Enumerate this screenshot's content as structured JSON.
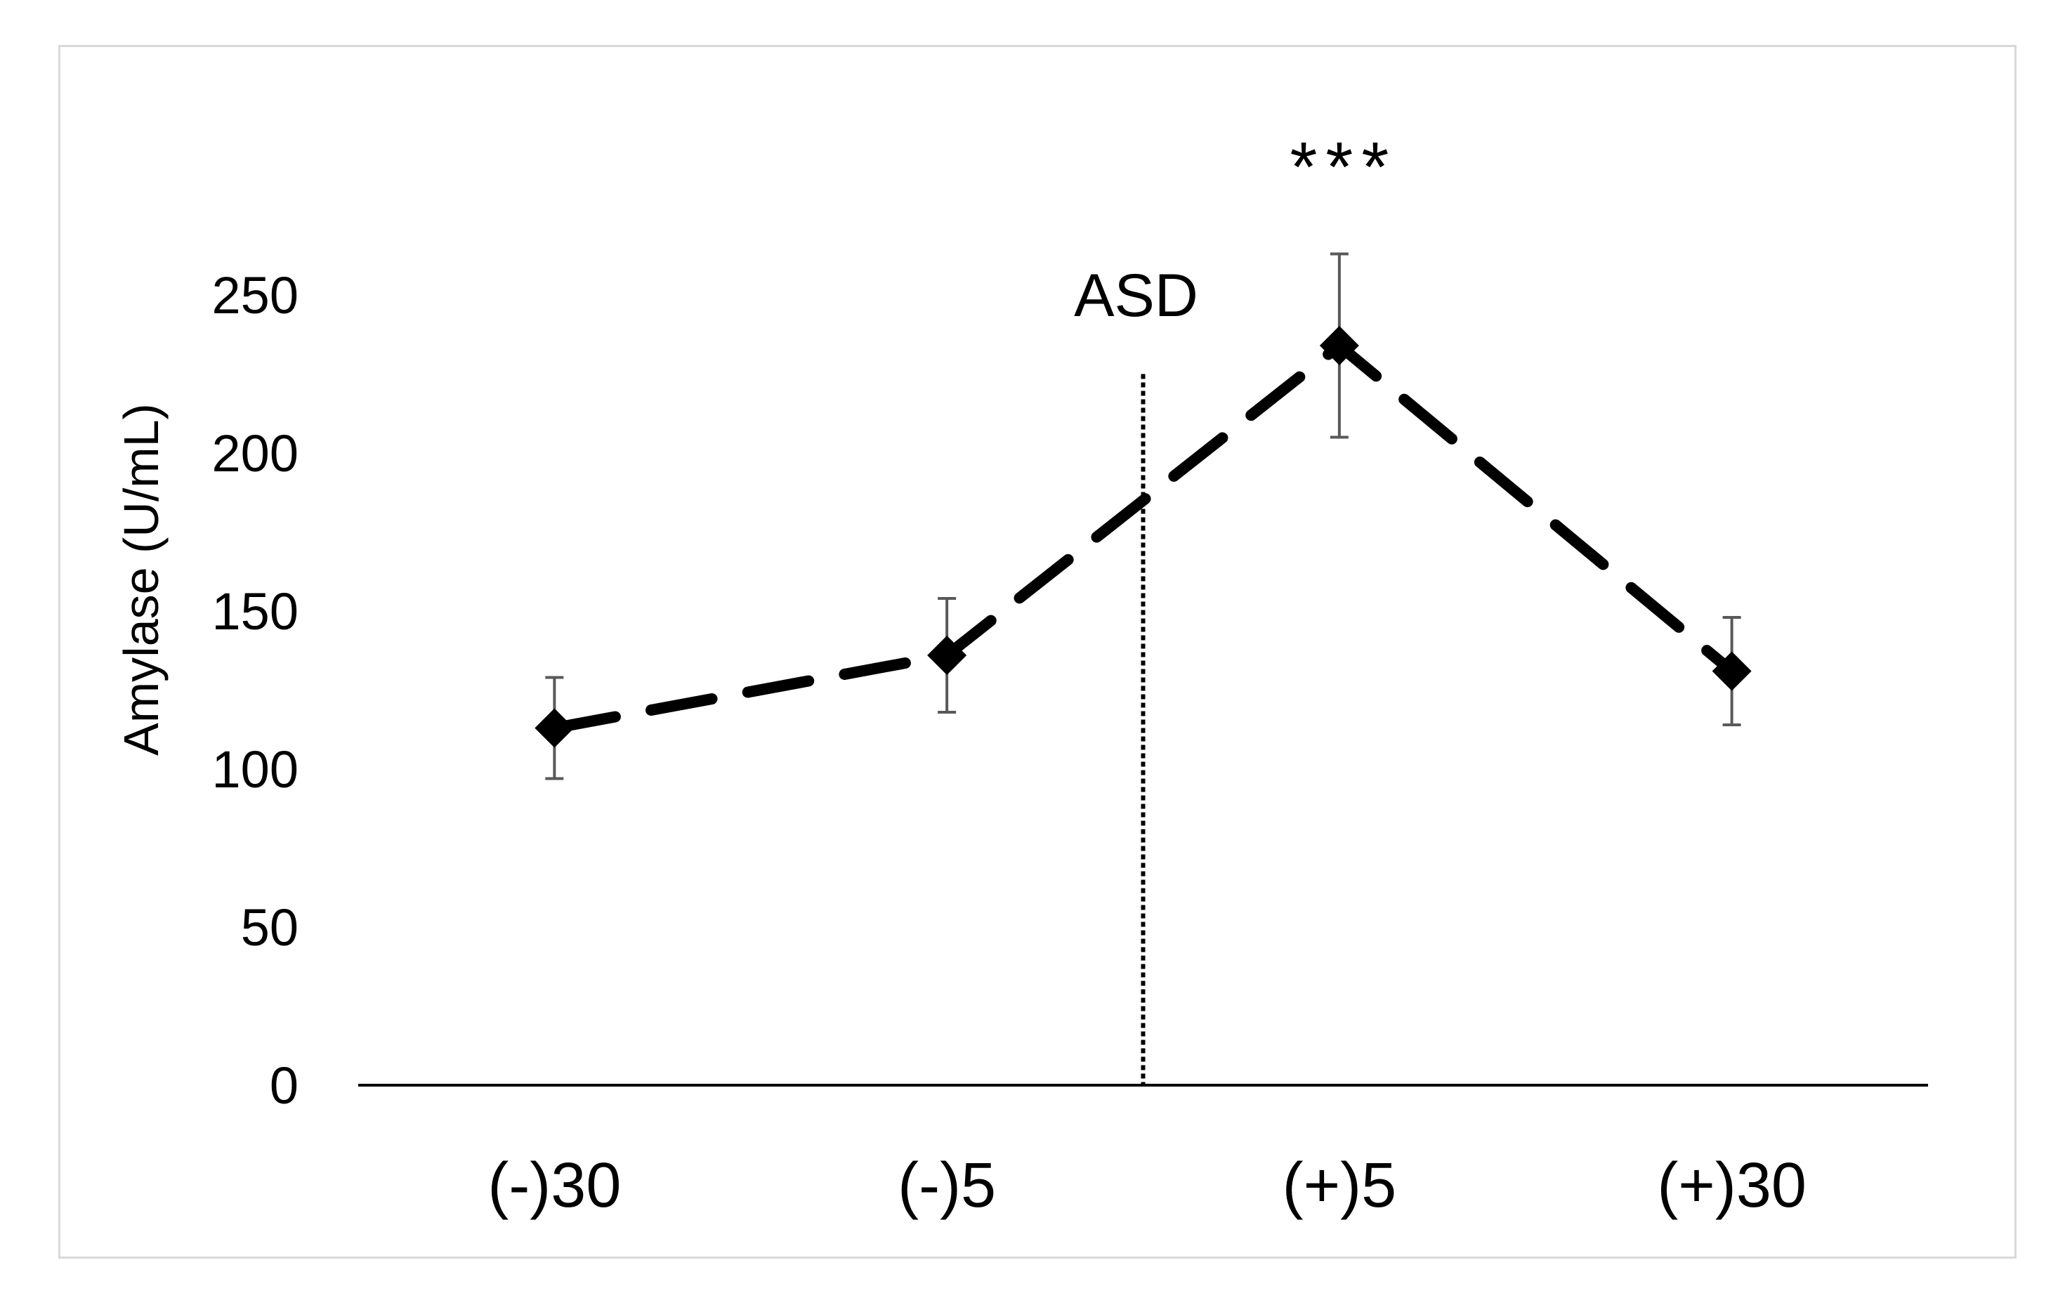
{
  "chart_data": {
    "type": "line",
    "title": "",
    "xlabel": "",
    "ylabel": "Amylase (U/mL)",
    "ylim": [
      0,
      250
    ],
    "yticks": [
      "0",
      "50",
      "100",
      "150",
      "200",
      "250"
    ],
    "categories": [
      "(-)30",
      "(-)5",
      "(+)5",
      "(+)30"
    ],
    "series": [
      {
        "values": [
          113,
          136,
          234,
          131
        ],
        "error": [
          16,
          18,
          29,
          17
        ],
        "line_style": "dashed",
        "marker": "diamond",
        "color": "#000000"
      }
    ],
    "annotations": {
      "event_label": "ASD",
      "event_position": "between (-)5 and (+)5",
      "significance": "***",
      "significance_at": "(+)5"
    },
    "grid": false,
    "legend": "none"
  }
}
